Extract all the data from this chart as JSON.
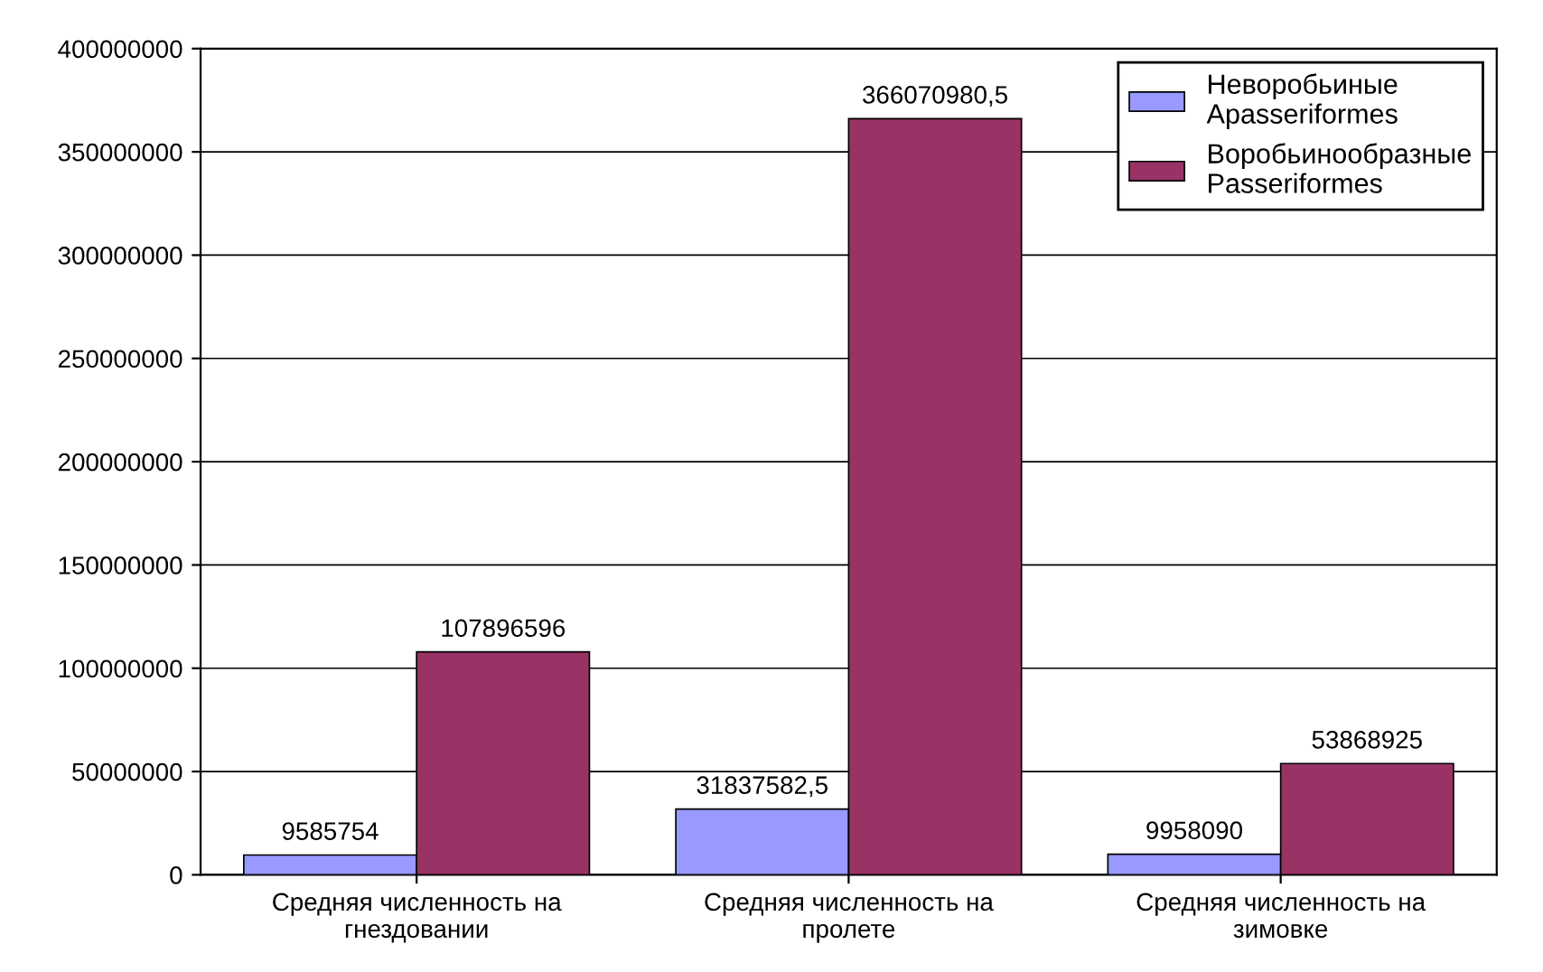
{
  "chart_data": {
    "type": "bar",
    "categories": [
      "Средняя численность на\nгнездовании",
      "Средняя численность на\nпролете",
      "Средняя численность на\nзимовке"
    ],
    "series": [
      {
        "name": "Неворобьиные\nApasseriformes",
        "color": "#9999ff",
        "values": [
          9585754,
          31837582.5,
          9958090
        ],
        "value_labels": [
          "9585754",
          "31837582,5",
          "9958090"
        ]
      },
      {
        "name": "Воробьинообразные\nPasseriformes",
        "color": "#993366",
        "values": [
          107896596,
          366070980.5,
          53868925
        ],
        "value_labels": [
          "107896596",
          "366070980,5",
          "53868925"
        ]
      }
    ],
    "ylim": [
      0,
      400000000
    ],
    "yticks": [
      0,
      50000000,
      100000000,
      150000000,
      200000000,
      250000000,
      300000000,
      350000000,
      400000000
    ],
    "grid": "y",
    "legend": "top right"
  }
}
